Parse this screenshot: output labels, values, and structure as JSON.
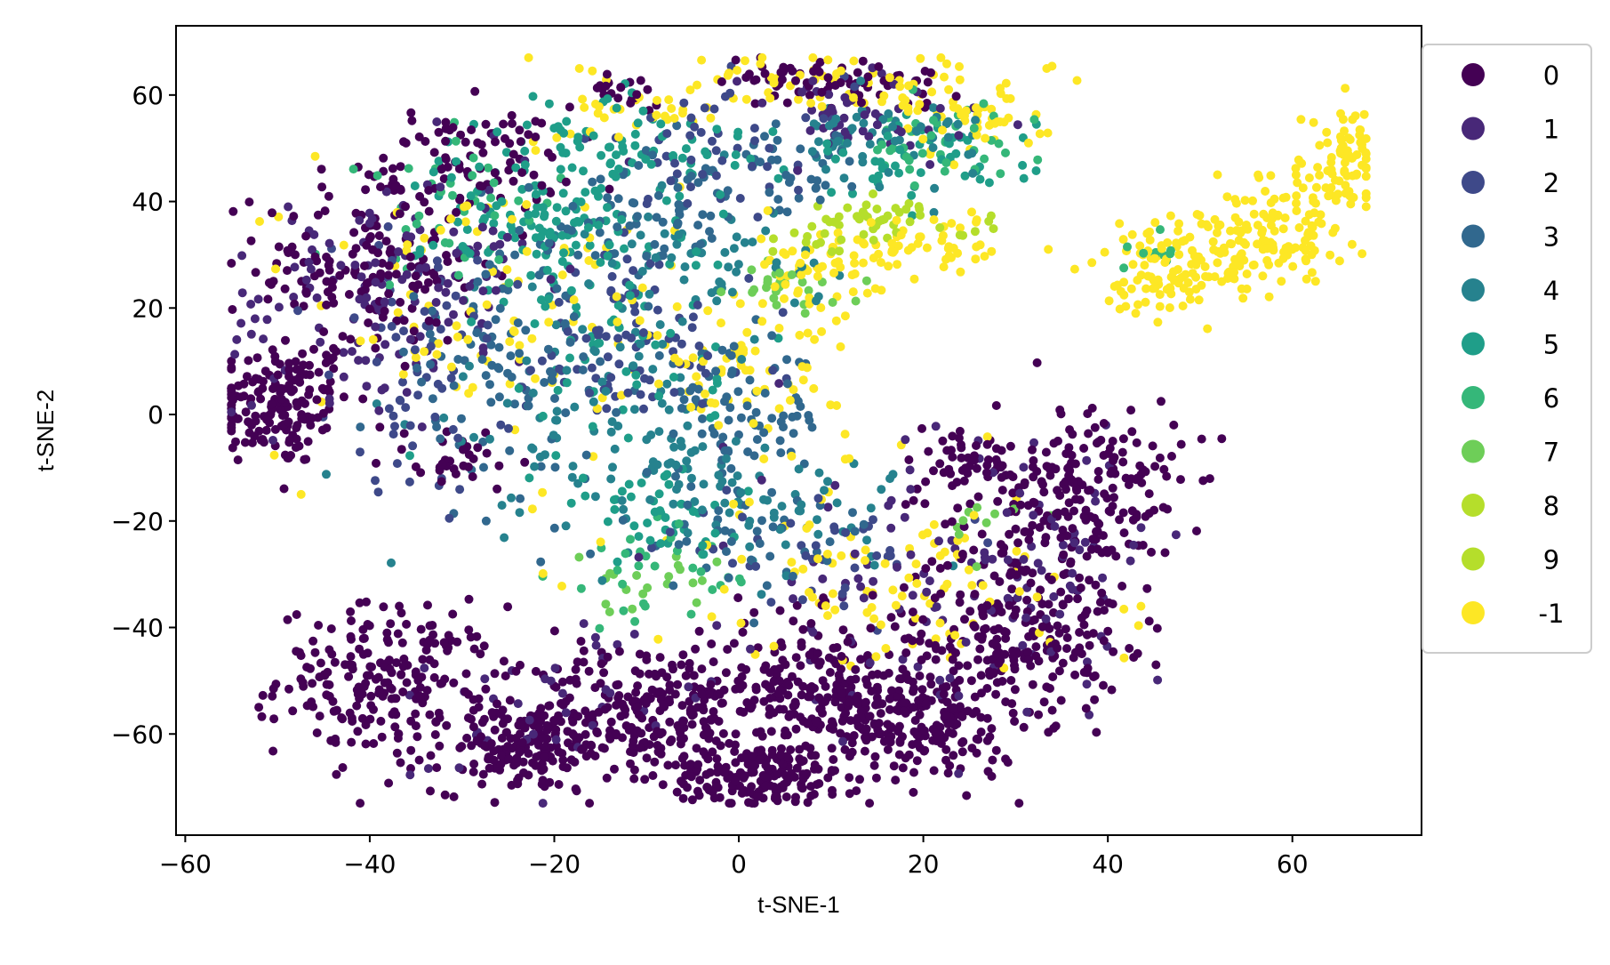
{
  "chart_data": {
    "type": "scatter",
    "title": "",
    "xlabel": "t-SNE-1",
    "ylabel": "t-SNE-2",
    "xlim": [
      -61,
      74
    ],
    "ylim": [
      -79,
      73
    ],
    "xticks": [
      -60,
      -40,
      -20,
      0,
      20,
      40,
      60
    ],
    "yticks": [
      -60,
      -40,
      -20,
      0,
      20,
      40,
      60
    ],
    "xtick_labels": [
      "−60",
      "−40",
      "−20",
      "0",
      "20",
      "40",
      "60"
    ],
    "ytick_labels": [
      "−60",
      "−40",
      "−20",
      "0",
      "20",
      "40",
      "60"
    ],
    "grid": false,
    "legend_position": "outside-right",
    "series": [
      {
        "name": "0",
        "color": "#440154",
        "clusters": [
          {
            "cx": -50,
            "cy": 2,
            "sx": 4,
            "sy": 6,
            "n": 160
          },
          {
            "cx": -40,
            "cy": 28,
            "sx": 6,
            "sy": 10,
            "n": 170
          },
          {
            "cx": -28,
            "cy": 48,
            "sx": 5,
            "sy": 5,
            "n": 80
          },
          {
            "cx": -38,
            "cy": -50,
            "sx": 6,
            "sy": 7,
            "n": 220
          },
          {
            "cx": -23,
            "cy": -63,
            "sx": 5,
            "sy": 4,
            "n": 170
          },
          {
            "cx": -10,
            "cy": -55,
            "sx": 6,
            "sy": 6,
            "n": 220
          },
          {
            "cx": 2,
            "cy": -68,
            "sx": 5,
            "sy": 3,
            "n": 150
          },
          {
            "cx": 8,
            "cy": -52,
            "sx": 6,
            "sy": 7,
            "n": 240
          },
          {
            "cx": 20,
            "cy": -58,
            "sx": 5,
            "sy": 6,
            "n": 200
          },
          {
            "cx": 30,
            "cy": -40,
            "sx": 6,
            "sy": 8,
            "n": 220
          },
          {
            "cx": 38,
            "cy": -15,
            "sx": 5,
            "sy": 9,
            "n": 200
          },
          {
            "cx": 25,
            "cy": -10,
            "sx": 4,
            "sy": 4,
            "n": 60
          },
          {
            "cx": 5,
            "cy": 63,
            "sx": 6,
            "sy": 2,
            "n": 40
          },
          {
            "cx": 16,
            "cy": 62,
            "sx": 4,
            "sy": 2,
            "n": 30
          },
          {
            "cx": -12,
            "cy": 61,
            "sx": 2,
            "sy": 1.5,
            "n": 20
          },
          {
            "cx": -30,
            "cy": -8,
            "sx": 4,
            "sy": 3,
            "n": 30
          }
        ]
      },
      {
        "name": "1",
        "color": "#482878",
        "clusters": [
          {
            "cx": -42,
            "cy": 20,
            "sx": 7,
            "sy": 12,
            "n": 90
          },
          {
            "cx": -30,
            "cy": 30,
            "sx": 5,
            "sy": 8,
            "n": 50
          },
          {
            "cx": 12,
            "cy": 55,
            "sx": 8,
            "sy": 5,
            "n": 50
          },
          {
            "cx": 20,
            "cy": -30,
            "sx": 10,
            "sy": 15,
            "n": 80
          },
          {
            "cx": -22,
            "cy": -55,
            "sx": 10,
            "sy": 8,
            "n": 40
          },
          {
            "cx": 34,
            "cy": -30,
            "sx": 6,
            "sy": 10,
            "n": 50
          }
        ]
      },
      {
        "name": "2",
        "color": "#3e4989",
        "clusters": [
          {
            "cx": -34,
            "cy": 10,
            "sx": 5,
            "sy": 12,
            "n": 70
          },
          {
            "cx": -12,
            "cy": 14,
            "sx": 7,
            "sy": 10,
            "n": 90
          },
          {
            "cx": -2,
            "cy": 50,
            "sx": 7,
            "sy": 6,
            "n": 50
          },
          {
            "cx": 8,
            "cy": -25,
            "sx": 8,
            "sy": 5,
            "n": 40
          }
        ]
      },
      {
        "name": "3",
        "color": "#31688e",
        "clusters": [
          {
            "cx": -26,
            "cy": 8,
            "sx": 6,
            "sy": 10,
            "n": 90
          },
          {
            "cx": 0,
            "cy": 0,
            "sx": 5,
            "sy": 6,
            "n": 80
          },
          {
            "cx": -12,
            "cy": 36,
            "sx": 6,
            "sy": 6,
            "n": 60
          },
          {
            "cx": 5,
            "cy": 45,
            "sx": 6,
            "sy": 4,
            "n": 50
          },
          {
            "cx": 0,
            "cy": -22,
            "sx": 8,
            "sy": 5,
            "n": 50
          }
        ]
      },
      {
        "name": "4",
        "color": "#26828e",
        "clusters": [
          {
            "cx": -18,
            "cy": 0,
            "sx": 8,
            "sy": 12,
            "n": 80
          },
          {
            "cx": -3,
            "cy": 28,
            "sx": 6,
            "sy": 5,
            "n": 60
          },
          {
            "cx": 15,
            "cy": 52,
            "sx": 6,
            "sy": 4,
            "n": 60
          },
          {
            "cx": 5,
            "cy": -18,
            "sx": 7,
            "sy": 5,
            "n": 50
          },
          {
            "cx": -6,
            "cy": -8,
            "sx": 4,
            "sy": 3,
            "n": 30
          }
        ]
      },
      {
        "name": "5",
        "color": "#1f9e89",
        "clusters": [
          {
            "cx": -20,
            "cy": 36,
            "sx": 7,
            "sy": 7,
            "n": 120
          },
          {
            "cx": -12,
            "cy": 50,
            "sx": 8,
            "sy": 5,
            "n": 80
          },
          {
            "cx": -14,
            "cy": 10,
            "sx": 6,
            "sy": 12,
            "n": 60
          },
          {
            "cx": 20,
            "cy": 48,
            "sx": 6,
            "sy": 4,
            "n": 50
          },
          {
            "cx": -8,
            "cy": -20,
            "sx": 5,
            "sy": 4,
            "n": 40
          }
        ]
      },
      {
        "name": "6",
        "color": "#35b779",
        "clusters": [
          {
            "cx": -30,
            "cy": 40,
            "sx": 6,
            "sy": 8,
            "n": 40
          },
          {
            "cx": 22,
            "cy": 50,
            "sx": 5,
            "sy": 4,
            "n": 40
          },
          {
            "cx": -10,
            "cy": -30,
            "sx": 5,
            "sy": 5,
            "n": 30
          },
          {
            "cx": 45,
            "cy": 30,
            "sx": 2,
            "sy": 2,
            "n": 10
          }
        ]
      },
      {
        "name": "7",
        "color": "#6ece58",
        "clusters": [
          {
            "cx": 5,
            "cy": 24,
            "sx": 3,
            "sy": 2,
            "n": 25
          },
          {
            "cx": -10,
            "cy": -33,
            "sx": 4,
            "sy": 3,
            "n": 20
          },
          {
            "cx": 24,
            "cy": -20,
            "sx": 3,
            "sy": 3,
            "n": 10
          }
        ]
      },
      {
        "name": "8",
        "color": "#b5de2b",
        "clusters": [
          {
            "cx": 16,
            "cy": 37,
            "sx": 6,
            "sy": 2,
            "n": 25
          },
          {
            "cx": 8,
            "cy": 32,
            "sx": 3,
            "sy": 2,
            "n": 10
          }
        ]
      },
      {
        "name": "9",
        "color": "#b5de2b",
        "clusters": [
          {
            "cx": 18,
            "cy": 36,
            "sx": 6,
            "sy": 2,
            "n": 20
          }
        ]
      },
      {
        "name": "-1",
        "color": "#fde725",
        "clusters": [
          {
            "cx": 52,
            "cy": 30,
            "sx": 6,
            "sy": 4,
            "n": 120
          },
          {
            "cx": 60,
            "cy": 38,
            "sx": 4,
            "sy": 5,
            "n": 90
          },
          {
            "cx": 66,
            "cy": 49,
            "sx": 2,
            "sy": 4,
            "n": 60
          },
          {
            "cx": 46,
            "cy": 25,
            "sx": 3,
            "sy": 3,
            "n": 50
          },
          {
            "cx": 20,
            "cy": 32,
            "sx": 6,
            "sy": 3,
            "n": 60
          },
          {
            "cx": 8,
            "cy": 26,
            "sx": 4,
            "sy": 3,
            "n": 40
          },
          {
            "cx": 2,
            "cy": 8,
            "sx": 5,
            "sy": 6,
            "n": 50
          },
          {
            "cx": 12,
            "cy": 62,
            "sx": 10,
            "sy": 3,
            "n": 70
          },
          {
            "cx": 25,
            "cy": 55,
            "sx": 4,
            "sy": 3,
            "n": 40
          },
          {
            "cx": -30,
            "cy": 20,
            "sx": 10,
            "sy": 15,
            "n": 60
          },
          {
            "cx": -14,
            "cy": 18,
            "sx": 10,
            "sy": 15,
            "n": 60
          },
          {
            "cx": 10,
            "cy": -30,
            "sx": 10,
            "sy": 10,
            "n": 60
          },
          {
            "cx": 25,
            "cy": -35,
            "sx": 10,
            "sy": 8,
            "n": 40
          },
          {
            "cx": -10,
            "cy": 58,
            "sx": 4,
            "sy": 3,
            "n": 30
          }
        ]
      }
    ]
  }
}
